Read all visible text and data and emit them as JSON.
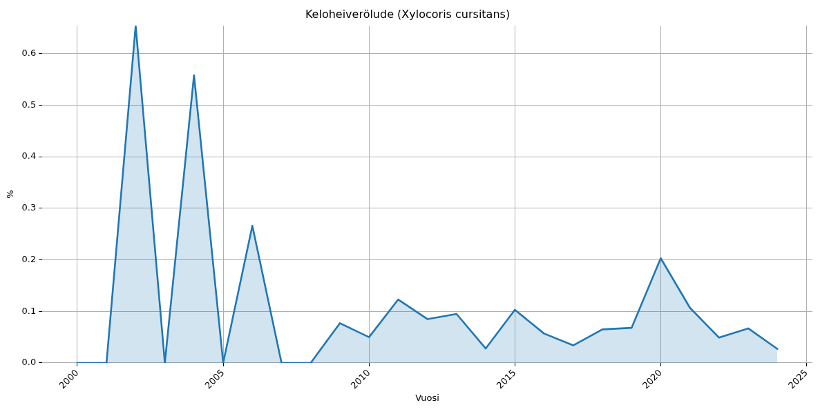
{
  "chart_data": {
    "type": "area",
    "title": "Keloheiverölude (Xylocoris cursitans)",
    "xlabel": "Vuosi",
    "ylabel": "%",
    "x": [
      2000,
      2001,
      2002,
      2003,
      2004,
      2005,
      2006,
      2007,
      2008,
      2009,
      2010,
      2011,
      2012,
      2013,
      2014,
      2015,
      2016,
      2017,
      2018,
      2019,
      2020,
      2021,
      2022,
      2023,
      2024
    ],
    "series": [
      {
        "color": "#1f77b4",
        "values": [
          0,
          0,
          0.654,
          0,
          0.558,
          0,
          0.266,
          0,
          0,
          0.077,
          0.05,
          0.123,
          0.085,
          0.095,
          0.028,
          0.103,
          0.057,
          0.034,
          0.065,
          0.068,
          0.203,
          0.107,
          0.049,
          0.067,
          0.027
        ]
      }
    ],
    "xlim": [
      1998.8,
      2025.2
    ],
    "ylim": [
      0,
      0.654
    ],
    "xticks": [
      2000,
      2005,
      2010,
      2015,
      2020,
      2025
    ],
    "yticks": [
      {
        "value": 0,
        "label": "0.0"
      },
      {
        "value": 0.1,
        "label": "0.1"
      },
      {
        "value": 0.2,
        "label": "0.2"
      },
      {
        "value": 0.3,
        "label": "0.3"
      },
      {
        "value": 0.4,
        "label": "0.4"
      },
      {
        "value": 0.5,
        "label": "0.5"
      },
      {
        "value": 0.6,
        "label": "0.6"
      }
    ],
    "grid": true
  }
}
